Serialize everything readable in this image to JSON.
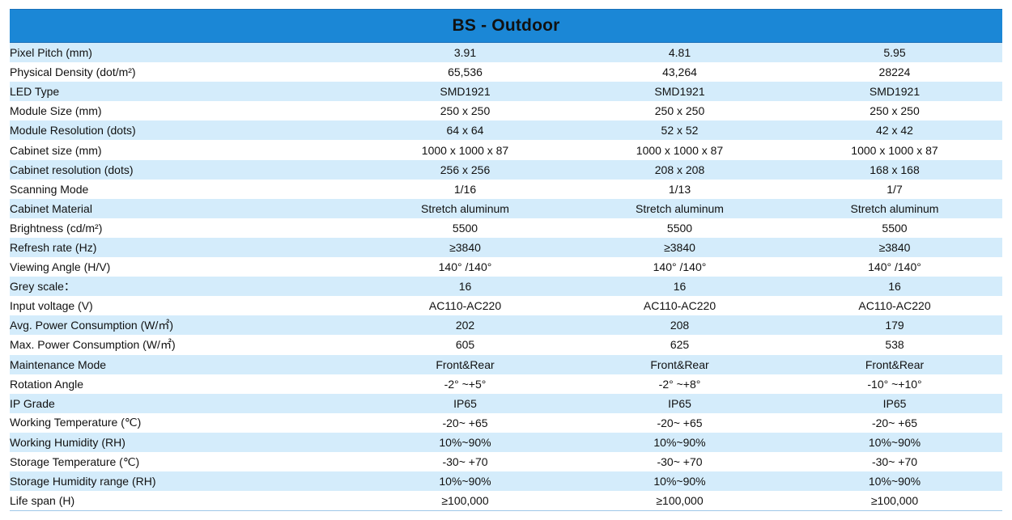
{
  "title": "BS - Outdoor",
  "colors": {
    "header_background": "#1b87d6",
    "row_stripe": "#d4ecfb",
    "row_plain": "#ffffff",
    "text": "#111111"
  },
  "rows": [
    {
      "label": "Pixel Pitch (mm)",
      "v1": "3.91",
      "v2": "4.81",
      "v3": "5.95"
    },
    {
      "label": "Physical Density (dot/m²)",
      "v1": "65,536",
      "v2": "43,264",
      "v3": "28224"
    },
    {
      "label": "LED Type",
      "v1": "SMD1921",
      "v2": "SMD1921",
      "v3": "SMD1921"
    },
    {
      "label": "Module Size (mm)",
      "v1": "250 x 250",
      "v2": "250 x 250",
      "v3": "250 x 250"
    },
    {
      "label": "Module Resolution (dots)",
      "v1": "64 x 64",
      "v2": "52 x 52",
      "v3": "42 x 42"
    },
    {
      "label": "Cabinet size (mm)",
      "v1": "1000 x 1000 x 87",
      "v2": "1000 x 1000 x 87",
      "v3": "1000 x 1000 x 87"
    },
    {
      "label": "Cabinet resolution (dots)",
      "v1": "256 x 256",
      "v2": "208 x 208",
      "v3": "168 x 168"
    },
    {
      "label": "Scanning Mode",
      "v1": "1/16",
      "v2": "1/13",
      "v3": "1/7"
    },
    {
      "label": "Cabinet Material",
      "v1": "Stretch aluminum",
      "v2": "Stretch aluminum",
      "v3": "Stretch aluminum"
    },
    {
      "label": "Brightness (cd/m²)",
      "v1": "5500",
      "v2": "5500",
      "v3": "5500"
    },
    {
      "label": "Refresh  rate (Hz)",
      "v1": "≥3840",
      "v2": "≥3840",
      "v3": "≥3840"
    },
    {
      "label": "Viewing Angle (H/V)",
      "v1": "140°  /140°",
      "v2": "140°  /140°",
      "v3": "140°  /140°"
    },
    {
      "label": "Grey  scale：",
      "v1": "16",
      "v2": "16",
      "v3": "16"
    },
    {
      "label": "Input voltage (V)",
      "v1": "AC110-AC220",
      "v2": "AC110-AC220",
      "v3": "AC110-AC220"
    },
    {
      "label": "Avg. Power Consumption (W/㎡)",
      "v1": "202",
      "v2": "208",
      "v3": "179"
    },
    {
      "label": "Max. Power Consumption (W/㎡)",
      "v1": "605",
      "v2": "625",
      "v3": "538"
    },
    {
      "label": "Maintenance  Mode",
      "v1": "Front&Rear",
      "v2": "Front&Rear",
      "v3": "Front&Rear"
    },
    {
      "label": "Rotation Angle",
      "v1": "-2°  ~+5°",
      "v2": "-2°  ~+8°",
      "v3": "-10°  ~+10°"
    },
    {
      "label": "IP Grade",
      "v1": "IP65",
      "v2": "IP65",
      "v3": "IP65"
    },
    {
      "label": "Working Temperature (℃)",
      "v1": "-20~ +65",
      "v2": "-20~ +65",
      "v3": "-20~ +65"
    },
    {
      "label": "Working  Humidity (RH)",
      "v1": "10%~90%",
      "v2": "10%~90%",
      "v3": "10%~90%"
    },
    {
      "label": "Storage  Temperature (℃)",
      "v1": "-30~ +70",
      "v2": "-30~ +70",
      "v3": "-30~ +70"
    },
    {
      "label": "Storage Humidity  range (RH)",
      "v1": "10%~90%",
      "v2": "10%~90%",
      "v3": "10%~90%"
    },
    {
      "label": "Life span (H)",
      "v1": "≥100,000",
      "v2": "≥100,000",
      "v3": "≥100,000"
    }
  ]
}
